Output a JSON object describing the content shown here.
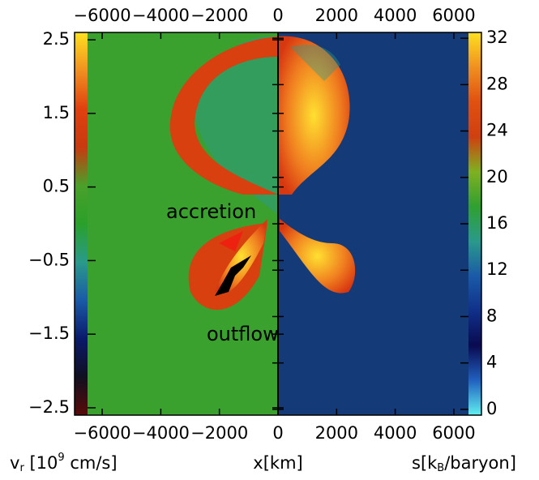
{
  "chart_data": {
    "type": "image",
    "x_label": "x[km]",
    "xlim": [
      -6500,
      6500
    ],
    "xticks": [
      {
        "value": -6000,
        "label": "−6000"
      },
      {
        "value": -4000,
        "label": "−4000"
      },
      {
        "value": -2000,
        "label": "−2000"
      },
      0,
      2000,
      4000,
      6000
    ],
    "left_colorbar": {
      "label_parts": [
        "v",
        "r",
        " [10",
        "9",
        " cm/s]"
      ],
      "lim": [
        -2.6,
        2.6
      ],
      "ticks": [
        {
          "value": -2.5,
          "label": "−2.5"
        },
        {
          "value": -1.5,
          "label": "−1.5"
        },
        {
          "value": -0.5,
          "label": "−0.5"
        },
        0.5,
        1.5,
        2.5
      ],
      "colors": [
        "#5a0a0a",
        "#101020",
        "#0a1a6a",
        "#1a5aa8",
        "#2a9a8a",
        "#2aa02a",
        "#4aa02a",
        "#c83a10",
        "#e04010",
        "#f09020",
        "#ffe020"
      ]
    },
    "right_colorbar": {
      "label_parts": [
        "s[k",
        "B",
        "/baryon]"
      ],
      "lim": [
        -0.5,
        32.5
      ],
      "ticks": [
        0,
        4,
        8,
        12,
        16,
        20,
        24,
        28,
        32
      ],
      "colors": [
        "#60f0f0",
        "#2060c0",
        "#0a0a50",
        "#10308a",
        "#1a5aa8",
        "#2a9a8a",
        "#30a030",
        "#80b020",
        "#d04010",
        "#e05010",
        "#f09020",
        "#ffe020"
      ]
    },
    "annotations": [
      {
        "text": "accretion",
        "color": "#ee2010"
      },
      {
        "text": "outflow",
        "color": "#000000"
      }
    ]
  }
}
